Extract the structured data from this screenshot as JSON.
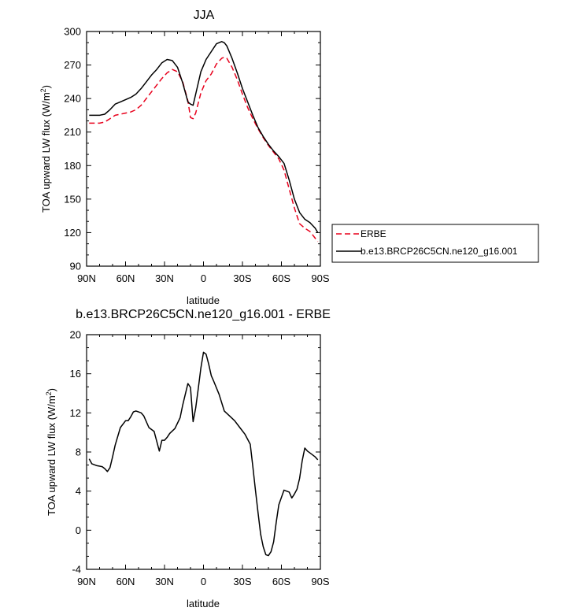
{
  "chart_data": [
    {
      "type": "line",
      "title": "JJA",
      "xlabel": "latitude",
      "ylabel": "TOA upward LW flux (W/m²)",
      "xlim": [
        -90,
        90
      ],
      "ylim": [
        90,
        300
      ],
      "xticks": [
        "90N",
        "60N",
        "30N",
        "0",
        "30S",
        "60S",
        "90S"
      ],
      "yticks": [
        "90",
        "120",
        "150",
        "180",
        "210",
        "240",
        "270",
        "300"
      ],
      "legend_position": "right",
      "series": [
        {
          "name": "ERBE",
          "color": "#e8001c",
          "dash": true,
          "x": [
            -88,
            -84,
            -80,
            -76,
            -72,
            -68,
            -64,
            -60,
            -56,
            -52,
            -48,
            -44,
            -40,
            -36,
            -32,
            -28,
            -24,
            -20,
            -16,
            -12,
            -10,
            -8,
            -6,
            -2,
            2,
            6,
            10,
            14,
            16,
            18,
            22,
            26,
            30,
            34,
            38,
            42,
            46,
            50,
            54,
            58,
            62,
            66,
            70,
            74,
            78,
            82,
            86,
            88
          ],
          "y": [
            218,
            218,
            218,
            219,
            222,
            225,
            226,
            227,
            228,
            230,
            234,
            240,
            246,
            252,
            258,
            263,
            266,
            264,
            255,
            238,
            223,
            222,
            227,
            245,
            256,
            262,
            271,
            276,
            277,
            276,
            268,
            257,
            244,
            232,
            222,
            213,
            205,
            198,
            192,
            186,
            176,
            159,
            142,
            128,
            124,
            121,
            115,
            112
          ]
        },
        {
          "name": "b.e13.BRCP26C5CN.ne120_g16.001",
          "color": "#000000",
          "dash": false,
          "x": [
            -88,
            -84,
            -80,
            -76,
            -72,
            -68,
            -64,
            -60,
            -56,
            -52,
            -48,
            -44,
            -40,
            -36,
            -32,
            -28,
            -24,
            -20,
            -16,
            -12,
            -10,
            -8,
            -6,
            -2,
            2,
            6,
            10,
            14,
            16,
            18,
            22,
            26,
            30,
            34,
            38,
            42,
            46,
            50,
            54,
            58,
            62,
            66,
            70,
            74,
            78,
            82,
            86,
            88
          ],
          "y": [
            225,
            225,
            225,
            226,
            230,
            235,
            237,
            239,
            241,
            244,
            249,
            255,
            261,
            266,
            272,
            275,
            274,
            268,
            254,
            237,
            235,
            234,
            244,
            264,
            275,
            282,
            289,
            291,
            290,
            287,
            276,
            263,
            249,
            237,
            225,
            214,
            206,
            199,
            193,
            188,
            182,
            167,
            150,
            138,
            132,
            129,
            124,
            120
          ]
        }
      ]
    },
    {
      "type": "line",
      "title": "b.e13.BRCP26C5CN.ne120_g16.001 - ERBE",
      "xlabel": "latitude",
      "ylabel": "TOA upward LW flux (W/m²)",
      "xlim": [
        -90,
        90
      ],
      "ylim": [
        -4,
        20
      ],
      "xticks": [
        "90N",
        "60N",
        "30N",
        "0",
        "30S",
        "60S",
        "90S"
      ],
      "yticks": [
        "-4",
        "0",
        "4",
        "8",
        "12",
        "16",
        "20"
      ],
      "series": [
        {
          "color": "#000000",
          "dash": false,
          "x": [
            -88,
            -86,
            -82,
            -78,
            -76,
            -74,
            -72,
            -70,
            -68,
            -64,
            -60,
            -58,
            -56,
            -54,
            -52,
            -50,
            -48,
            -46,
            -42,
            -38,
            -34,
            -32,
            -30,
            -28,
            -26,
            -22,
            -18,
            -16,
            -12,
            -10,
            -8,
            -6,
            -4,
            -2,
            0,
            2,
            4,
            6,
            8,
            12,
            16,
            20,
            24,
            28,
            32,
            36,
            38,
            40,
            42,
            44,
            46,
            48,
            50,
            52,
            54,
            56,
            58,
            62,
            66,
            68,
            70,
            72,
            74,
            76,
            78,
            80,
            82,
            86,
            88
          ],
          "y": [
            7.3,
            6.8,
            6.6,
            6.5,
            6.3,
            6.0,
            6.4,
            7.5,
            8.7,
            10.5,
            11.2,
            11.2,
            11.6,
            12.1,
            12.2,
            12.1,
            12.0,
            11.7,
            10.5,
            10.1,
            8.1,
            9.2,
            9.2,
            9.5,
            9.9,
            10.4,
            11.5,
            12.8,
            15.0,
            14.6,
            11.1,
            12.5,
            14.5,
            16.6,
            18.2,
            18.0,
            17.0,
            15.8,
            15.2,
            13.9,
            12.2,
            11.7,
            11.2,
            10.5,
            9.8,
            8.8,
            6.5,
            4.1,
            1.8,
            -0.4,
            -1.7,
            -2.5,
            -2.6,
            -2.2,
            -1.2,
            0.8,
            2.6,
            4.1,
            3.9,
            3.3,
            3.7,
            4.2,
            5.3,
            7.1,
            8.4,
            8.1,
            7.9,
            7.5,
            7.2
          ]
        }
      ]
    }
  ]
}
